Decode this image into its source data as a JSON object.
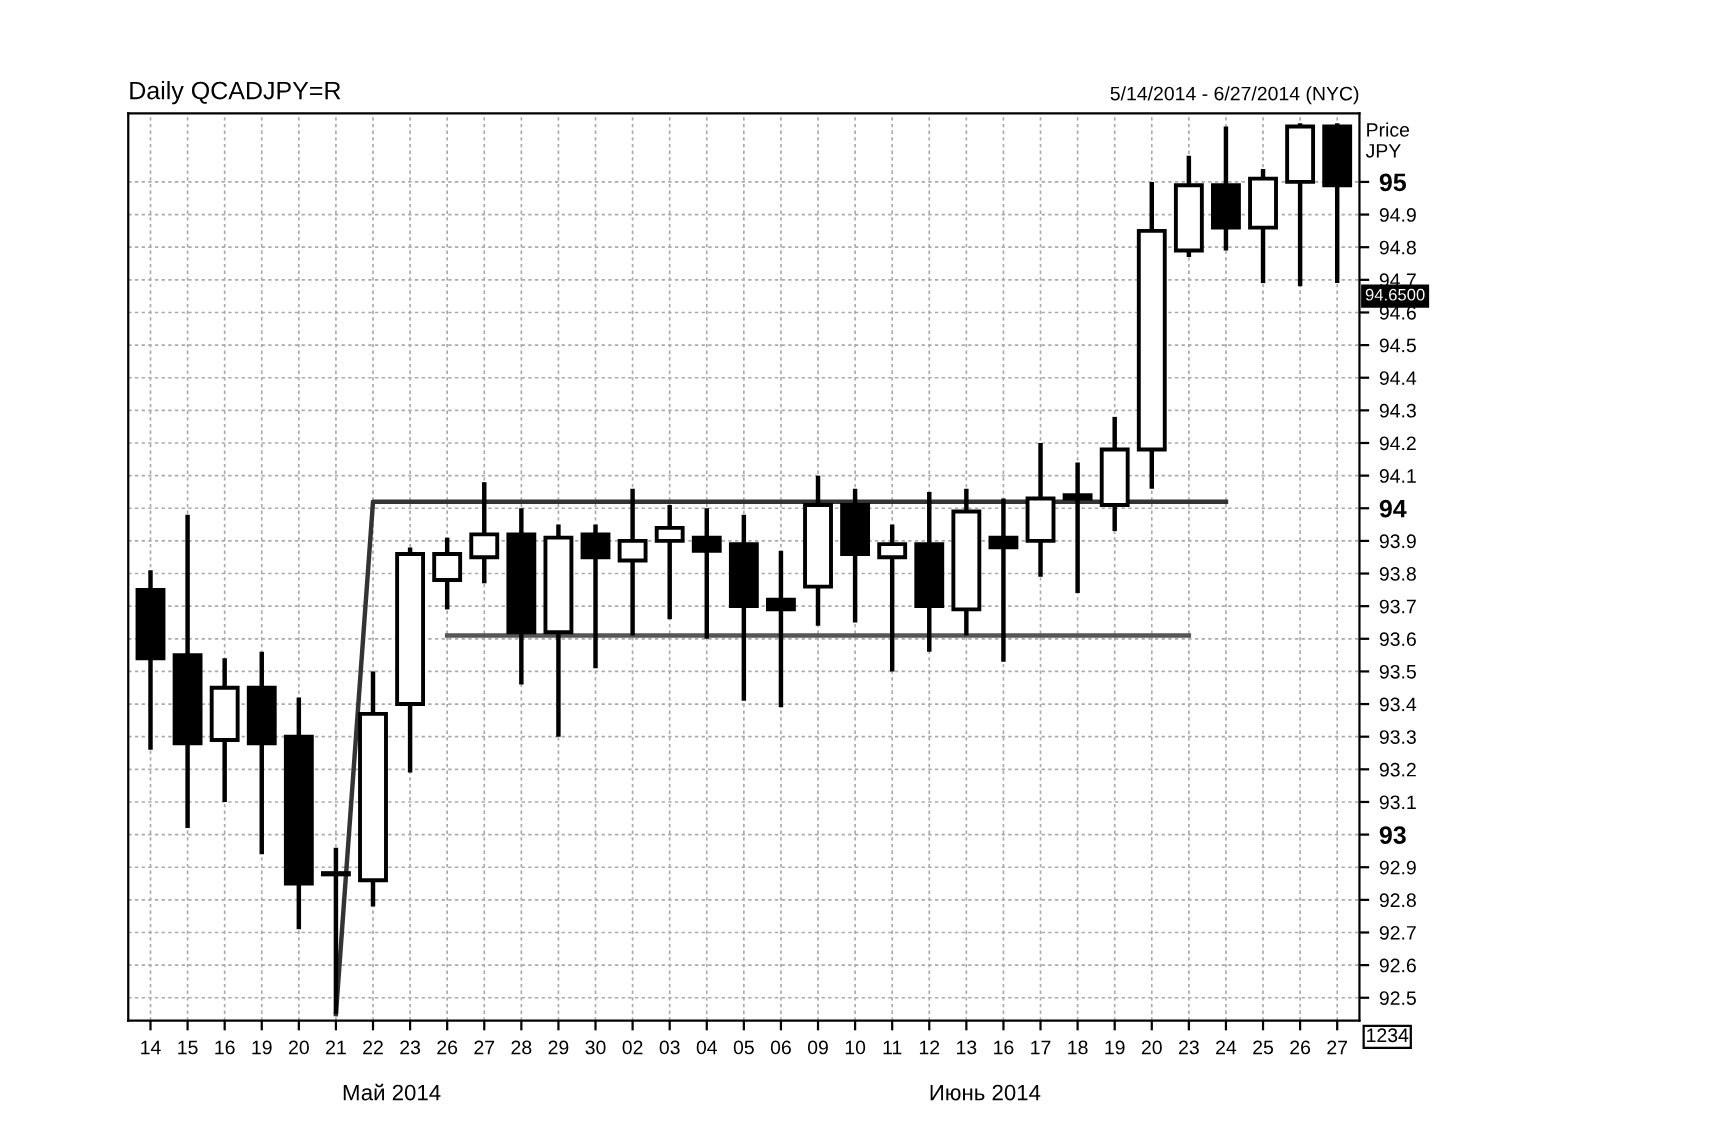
{
  "chart_data": {
    "type": "candlestick",
    "title": "Daily QCADJPY=R",
    "subtitle": "5/14/2014 - 6/27/2014 (NYC)",
    "ylabel": "Price\nJPY",
    "categories": [
      "14",
      "15",
      "16",
      "19",
      "20",
      "21",
      "22",
      "23",
      "26",
      "27",
      "28",
      "29",
      "30",
      "02",
      "03",
      "04",
      "05",
      "06",
      "09",
      "10",
      "11",
      "12",
      "13",
      "16",
      "17",
      "18",
      "19",
      "20",
      "23",
      "24",
      "25",
      "26",
      "27"
    ],
    "ohlc": [
      [
        93.75,
        93.81,
        93.26,
        93.54
      ],
      [
        93.55,
        93.98,
        93.02,
        93.28
      ],
      [
        93.29,
        93.54,
        93.1,
        93.45
      ],
      [
        93.45,
        93.56,
        92.94,
        93.28
      ],
      [
        93.3,
        93.42,
        92.71,
        92.85
      ],
      [
        92.88,
        92.96,
        92.45,
        92.88
      ],
      [
        92.86,
        93.5,
        92.78,
        93.37
      ],
      [
        93.4,
        93.88,
        93.19,
        93.86
      ],
      [
        93.78,
        93.91,
        93.69,
        93.86
      ],
      [
        93.85,
        94.08,
        93.77,
        93.92
      ],
      [
        93.92,
        94.0,
        93.46,
        93.62
      ],
      [
        93.62,
        93.95,
        93.3,
        93.91
      ],
      [
        93.92,
        93.95,
        93.51,
        93.85
      ],
      [
        93.84,
        94.06,
        93.61,
        93.9
      ],
      [
        93.9,
        94.01,
        93.66,
        93.94
      ],
      [
        93.91,
        94.0,
        93.6,
        93.87
      ],
      [
        93.89,
        93.98,
        93.41,
        93.7
      ],
      [
        93.72,
        93.87,
        93.39,
        93.69
      ],
      [
        93.76,
        94.1,
        93.64,
        94.01
      ],
      [
        94.01,
        94.06,
        93.65,
        93.86
      ],
      [
        93.85,
        93.95,
        93.5,
        93.89
      ],
      [
        93.89,
        94.05,
        93.56,
        93.7
      ],
      [
        93.69,
        94.06,
        93.61,
        93.99
      ],
      [
        93.91,
        94.03,
        93.53,
        93.88
      ],
      [
        93.9,
        94.2,
        93.79,
        94.03
      ],
      [
        94.04,
        94.14,
        93.74,
        94.03
      ],
      [
        94.01,
        94.28,
        93.93,
        94.18
      ],
      [
        94.18,
        95.0,
        94.06,
        94.85
      ],
      [
        94.79,
        95.08,
        94.77,
        94.99
      ],
      [
        94.99,
        95.17,
        94.79,
        94.86
      ],
      [
        94.86,
        95.04,
        94.69,
        95.01
      ],
      [
        95.0,
        95.18,
        94.68,
        95.17
      ],
      [
        95.17,
        95.18,
        94.69,
        94.99
      ]
    ],
    "series": [
      {
        "type": "line",
        "color": "#333333",
        "values": [
          null,
          null,
          null,
          null,
          null,
          92.45,
          94.02,
          null,
          94.02,
          94.02,
          94.02,
          94.02,
          94.02,
          94.02,
          94.02,
          94.02,
          94.02,
          94.02,
          94.02,
          94.02,
          94.02,
          94.02,
          94.02,
          94.02,
          94.02,
          94.02,
          94.02,
          94.02,
          94.02,
          94.02,
          null,
          null,
          null
        ]
      },
      {
        "type": "line",
        "color": "#555555",
        "values": [
          null,
          null,
          null,
          null,
          null,
          null,
          null,
          null,
          93.61,
          93.61,
          93.61,
          93.61,
          93.61,
          93.61,
          93.61,
          93.61,
          93.61,
          93.61,
          93.61,
          93.61,
          93.61,
          93.61,
          93.61,
          93.61,
          93.61,
          93.61,
          93.61,
          93.61,
          93.61,
          null,
          null,
          null,
          null
        ]
      }
    ],
    "ylim": [
      92.43,
      95.21
    ],
    "yticks": [
      92.5,
      92.6,
      92.7,
      92.8,
      92.9,
      93,
      93.1,
      93.2,
      93.3,
      93.4,
      93.5,
      93.6,
      93.7,
      93.8,
      93.9,
      94,
      94.1,
      94.2,
      94.3,
      94.4,
      94.5,
      94.6,
      94.7,
      94.8,
      94.9,
      95
    ],
    "annotations": [
      "Май 2014",
      "Июнь 2014",
      {
        "text": "94.6500",
        "y": 94.65
      },
      "1234"
    ],
    "grid": true
  }
}
